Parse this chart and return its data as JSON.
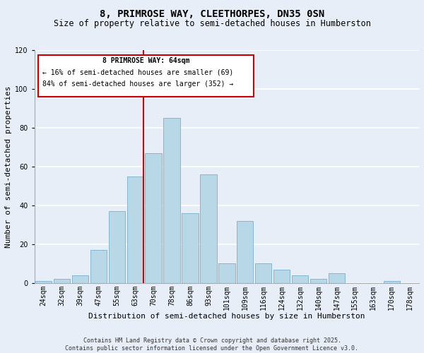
{
  "title": "8, PRIMROSE WAY, CLEETHORPES, DN35 0SN",
  "subtitle": "Size of property relative to semi-detached houses in Humberston",
  "xlabel": "Distribution of semi-detached houses by size in Humberston",
  "ylabel": "Number of semi-detached properties",
  "bar_labels": [
    "24sqm",
    "32sqm",
    "39sqm",
    "47sqm",
    "55sqm",
    "63sqm",
    "70sqm",
    "78sqm",
    "86sqm",
    "93sqm",
    "101sqm",
    "109sqm",
    "116sqm",
    "124sqm",
    "132sqm",
    "140sqm",
    "147sqm",
    "155sqm",
    "163sqm",
    "170sqm",
    "178sqm"
  ],
  "bar_values": [
    1,
    2,
    4,
    17,
    37,
    55,
    67,
    85,
    36,
    56,
    10,
    32,
    10,
    7,
    4,
    2,
    5,
    0,
    0,
    1,
    0
  ],
  "bar_color": "#b8d8e8",
  "bar_edge_color": "#7ab0cc",
  "highlight_index": 5,
  "highlight_line_color": "#cc0000",
  "ylim": [
    0,
    120
  ],
  "yticks": [
    0,
    20,
    40,
    60,
    80,
    100,
    120
  ],
  "annotation_title": "8 PRIMROSE WAY: 64sqm",
  "annotation_line1": "← 16% of semi-detached houses are smaller (69)",
  "annotation_line2": "84% of semi-detached houses are larger (352) →",
  "annotation_box_color": "#cc0000",
  "footnote1": "Contains HM Land Registry data © Crown copyright and database right 2025.",
  "footnote2": "Contains public sector information licensed under the Open Government Licence v3.0.",
  "background_color": "#e8eef8",
  "grid_color": "#ffffff",
  "title_fontsize": 10,
  "subtitle_fontsize": 8.5,
  "axis_label_fontsize": 8,
  "tick_fontsize": 7,
  "annotation_fontsize": 7,
  "footnote_fontsize": 6
}
